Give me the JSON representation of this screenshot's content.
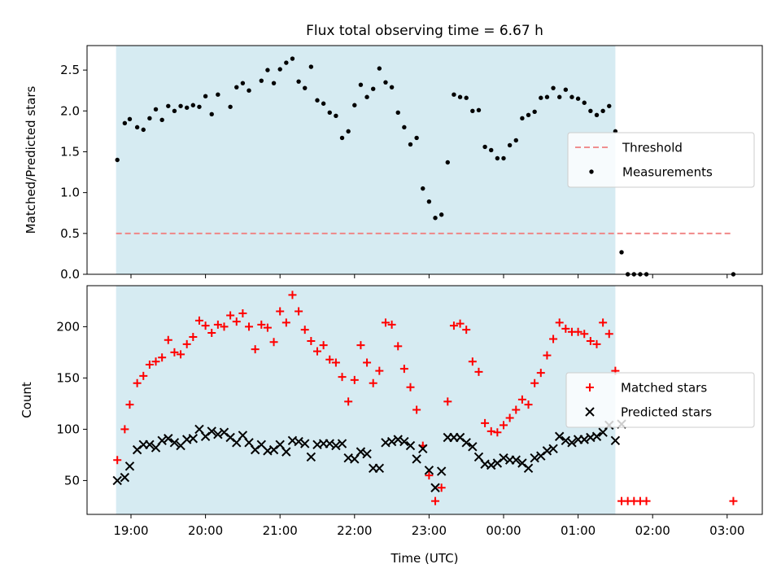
{
  "chart_data": [
    {
      "type": "scatter",
      "title": "Flux total observing time = 6.67 h",
      "xlabel": "",
      "ylabel": "Matched/Predicted stars",
      "ylim": [
        0,
        2.8
      ],
      "yticks": [
        "0.0",
        "0.5",
        "1.0",
        "1.5",
        "2.0",
        "2.5"
      ],
      "xticks_visible": false,
      "shaded_span": [
        "18:48",
        "01:30"
      ],
      "threshold": {
        "name": "Threshold",
        "value": 0.5,
        "from": "18:48",
        "to": "03:05",
        "color": "#f08080",
        "style": "dashed"
      },
      "legend_position": "center-right",
      "series": [
        {
          "name": "Measurements",
          "color": "#000000",
          "marker": "dot",
          "x": [
            "18:49",
            "18:55",
            "18:59",
            "19:05",
            "19:10",
            "19:15",
            "19:20",
            "19:25",
            "19:30",
            "19:35",
            "19:40",
            "19:45",
            "19:50",
            "19:55",
            "20:00",
            "20:05",
            "20:10",
            "20:20",
            "20:25",
            "20:30",
            "20:35",
            "20:45",
            "20:50",
            "20:55",
            "21:00",
            "21:05",
            "21:10",
            "21:15",
            "21:20",
            "21:25",
            "21:30",
            "21:35",
            "21:40",
            "21:45",
            "21:50",
            "21:55",
            "22:00",
            "22:05",
            "22:10",
            "22:15",
            "22:20",
            "22:25",
            "22:30",
            "22:35",
            "22:40",
            "22:45",
            "22:50",
            "22:55",
            "23:00",
            "23:05",
            "23:10",
            "23:15",
            "23:20",
            "23:25",
            "23:30",
            "23:35",
            "23:40",
            "23:45",
            "23:50",
            "23:55",
            "00:00",
            "00:05",
            "00:10",
            "00:15",
            "00:20",
            "00:25",
            "00:30",
            "00:35",
            "00:40",
            "00:45",
            "00:50",
            "00:55",
            "01:00",
            "01:05",
            "01:10",
            "01:15",
            "01:20",
            "01:25",
            "01:30",
            "01:35",
            "01:40",
            "01:45",
            "01:50",
            "01:55",
            "03:05"
          ],
          "y": [
            1.4,
            1.85,
            1.9,
            1.8,
            1.77,
            1.91,
            2.02,
            1.89,
            2.06,
            2.0,
            2.06,
            2.04,
            2.07,
            2.05,
            2.18,
            1.96,
            2.2,
            2.05,
            2.29,
            2.34,
            2.25,
            2.37,
            2.5,
            2.34,
            2.51,
            2.59,
            2.64,
            2.36,
            2.28,
            2.54,
            2.13,
            2.09,
            1.98,
            1.94,
            1.67,
            1.75,
            2.07,
            2.32,
            2.17,
            2.27,
            2.52,
            2.35,
            2.29,
            1.98,
            1.8,
            1.59,
            1.67,
            1.05,
            0.89,
            0.69,
            0.73,
            1.37,
            2.2,
            2.17,
            2.16,
            2.0,
            2.01,
            1.56,
            1.52,
            1.42,
            1.42,
            1.58,
            1.64,
            1.91,
            1.95,
            1.99,
            2.16,
            2.17,
            2.28,
            2.17,
            2.26,
            2.17,
            2.15,
            2.1,
            2.0,
            1.95,
            2.0,
            2.06,
            1.75,
            0.27,
            0.0,
            0.0,
            0.0,
            0.0,
            0.0
          ]
        }
      ]
    },
    {
      "type": "scatter",
      "title": "",
      "xlabel": "Time (UTC)",
      "ylabel": "Count",
      "ylim": [
        17,
        240
      ],
      "yticks": [
        "50",
        "100",
        "150",
        "200"
      ],
      "xticks": [
        "19:00",
        "20:00",
        "21:00",
        "22:00",
        "23:00",
        "00:00",
        "01:00",
        "02:00",
        "03:00"
      ],
      "shaded_span": [
        "18:48",
        "01:30"
      ],
      "legend_position": "center-right",
      "series": [
        {
          "name": "Matched stars",
          "color": "#ff0000",
          "marker": "plus",
          "x": [
            "18:49",
            "18:55",
            "18:59",
            "19:05",
            "19:10",
            "19:15",
            "19:20",
            "19:25",
            "19:30",
            "19:35",
            "19:40",
            "19:45",
            "19:50",
            "19:55",
            "20:00",
            "20:05",
            "20:10",
            "20:15",
            "20:20",
            "20:25",
            "20:30",
            "20:35",
            "20:40",
            "20:45",
            "20:50",
            "20:55",
            "21:00",
            "21:05",
            "21:10",
            "21:15",
            "21:20",
            "21:25",
            "21:30",
            "21:35",
            "21:40",
            "21:45",
            "21:50",
            "21:55",
            "22:00",
            "22:05",
            "22:10",
            "22:15",
            "22:20",
            "22:25",
            "22:30",
            "22:35",
            "22:40",
            "22:45",
            "22:50",
            "22:55",
            "23:00",
            "23:05",
            "23:10",
            "23:15",
            "23:20",
            "23:25",
            "23:30",
            "23:35",
            "23:40",
            "23:45",
            "23:50",
            "23:55",
            "00:00",
            "00:05",
            "00:10",
            "00:15",
            "00:20",
            "00:25",
            "00:30",
            "00:35",
            "00:40",
            "00:45",
            "00:50",
            "00:55",
            "01:00",
            "01:05",
            "01:10",
            "01:15",
            "01:20",
            "01:25",
            "01:30",
            "01:35",
            "01:40",
            "01:45",
            "01:50",
            "01:55",
            "03:05"
          ],
          "y": [
            70,
            100,
            124,
            145,
            152,
            163,
            166,
            170,
            187,
            175,
            173,
            183,
            190,
            206,
            201,
            194,
            202,
            200,
            211,
            205,
            213,
            200,
            178,
            202,
            199,
            185,
            215,
            204,
            231,
            215,
            197,
            186,
            176,
            182,
            168,
            165,
            151,
            127,
            148,
            182,
            165,
            145,
            157,
            204,
            202,
            181,
            159,
            141,
            119,
            84,
            55,
            30,
            43,
            127,
            201,
            203,
            197,
            166,
            156,
            106,
            98,
            97,
            104,
            111,
            119,
            129,
            124,
            145,
            155,
            172,
            188,
            204,
            198,
            195,
            195,
            193,
            186,
            183,
            204,
            193,
            157,
            30,
            30,
            30,
            30,
            30,
            30
          ]
        },
        {
          "name": "Predicted stars",
          "color": "#000000",
          "marker": "x",
          "x": [
            "18:49",
            "18:55",
            "18:59",
            "19:05",
            "19:10",
            "19:15",
            "19:20",
            "19:25",
            "19:30",
            "19:35",
            "19:40",
            "19:45",
            "19:50",
            "19:55",
            "20:00",
            "20:05",
            "20:10",
            "20:15",
            "20:20",
            "20:25",
            "20:30",
            "20:35",
            "20:40",
            "20:45",
            "20:50",
            "20:55",
            "21:00",
            "21:05",
            "21:10",
            "21:15",
            "21:20",
            "21:25",
            "21:30",
            "21:35",
            "21:40",
            "21:45",
            "21:50",
            "21:55",
            "22:00",
            "22:05",
            "22:10",
            "22:15",
            "22:20",
            "22:25",
            "22:30",
            "22:35",
            "22:40",
            "22:45",
            "22:50",
            "22:55",
            "23:00",
            "23:05",
            "23:10",
            "23:15",
            "23:20",
            "23:25",
            "23:30",
            "23:35",
            "23:40",
            "23:45",
            "23:50",
            "23:55",
            "00:00",
            "00:05",
            "00:10",
            "00:15",
            "00:20",
            "00:25",
            "00:30",
            "00:35",
            "00:40",
            "00:45",
            "00:50",
            "00:55",
            "01:00",
            "01:05",
            "01:10",
            "01:15",
            "01:20",
            "01:25",
            "01:30",
            "01:35"
          ],
          "y": [
            50,
            53,
            64,
            80,
            85,
            85,
            82,
            89,
            91,
            87,
            84,
            90,
            91,
            100,
            93,
            98,
            95,
            97,
            92,
            87,
            94,
            87,
            80,
            85,
            79,
            80,
            85,
            78,
            89,
            88,
            86,
            73,
            85,
            86,
            86,
            84,
            86,
            72,
            71,
            78,
            76,
            62,
            62,
            87,
            88,
            90,
            88,
            84,
            71,
            81,
            60,
            43,
            59,
            92,
            92,
            92,
            87,
            83,
            73,
            66,
            65,
            67,
            72,
            70,
            70,
            67,
            62,
            72,
            74,
            79,
            81,
            93,
            89,
            87,
            90,
            90,
            92,
            93,
            97,
            104,
            89,
            105
          ]
        }
      ]
    }
  ]
}
